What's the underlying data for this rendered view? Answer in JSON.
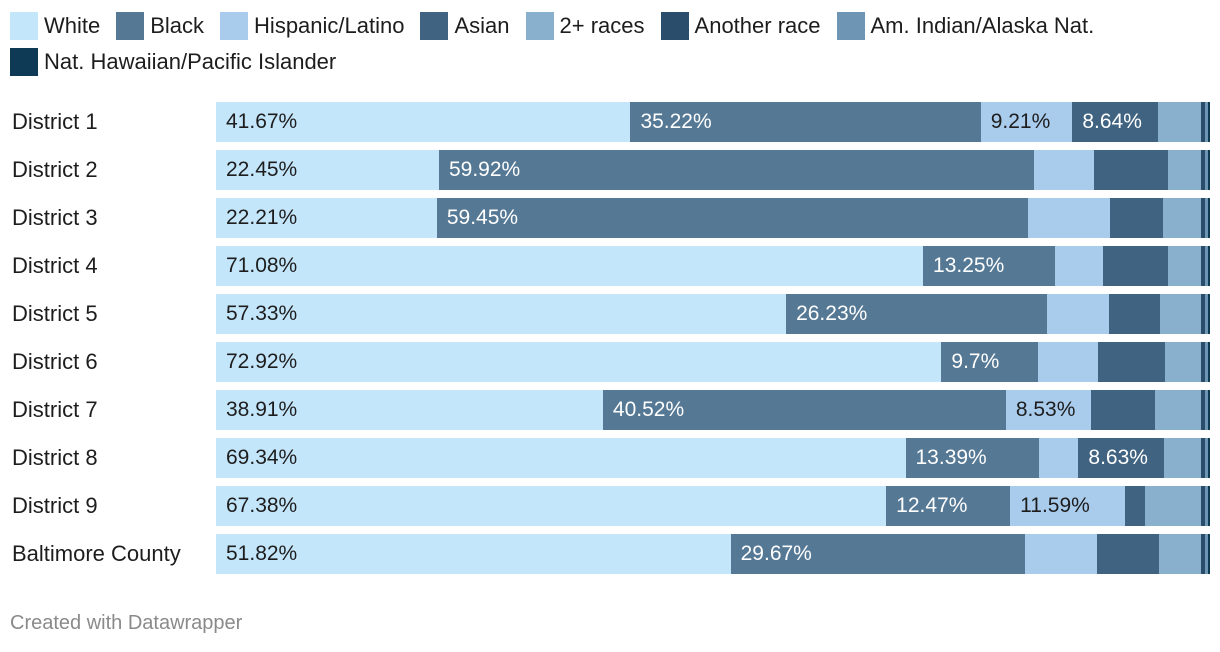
{
  "legend": {
    "items": [
      {
        "name": "White",
        "color": "#c4e6fb"
      },
      {
        "name": "Black",
        "color": "#557895"
      },
      {
        "name": "Hispanic/Latino",
        "color": "#a9cced"
      },
      {
        "name": "Asian",
        "color": "#3f6380"
      },
      {
        "name": "2+ races",
        "color": "#89b0cc"
      },
      {
        "name": "Another race",
        "color": "#294d6b"
      },
      {
        "name": "Am. Indian/Alaska Nat.",
        "color": "#6e95b3"
      },
      {
        "name": "Nat. Hawaiian/Pacific Islander",
        "color": "#0f3a55"
      }
    ]
  },
  "chart_data": {
    "type": "bar",
    "orientation": "horizontal",
    "stacked": true,
    "normalized_to": 100,
    "categories": [
      "District 1",
      "District 2",
      "District 3",
      "District 4",
      "District 5",
      "District 6",
      "District 7",
      "District 8",
      "District 9",
      "Baltimore County"
    ],
    "series": [
      {
        "name": "White",
        "color": "#c4e6fb",
        "values": [
          41.67,
          22.45,
          22.21,
          71.08,
          57.33,
          72.92,
          38.91,
          69.34,
          67.38,
          51.82
        ],
        "labels": [
          "41.67%",
          "22.45%",
          "22.21%",
          "71.08%",
          "57.33%",
          "72.92%",
          "38.91%",
          "69.34%",
          "67.38%",
          "51.82%"
        ]
      },
      {
        "name": "Black",
        "color": "#557895",
        "values": [
          35.22,
          59.92,
          59.45,
          13.25,
          26.23,
          9.7,
          40.52,
          13.39,
          12.47,
          29.67
        ],
        "labels": [
          "35.22%",
          "59.92%",
          "59.45%",
          "13.25%",
          "26.23%",
          "9.7%",
          "40.52%",
          "13.39%",
          "12.47%",
          "29.67%"
        ]
      },
      {
        "name": "Hispanic/Latino",
        "color": "#a9cced",
        "values": [
          9.21,
          6.0,
          8.2,
          4.8,
          6.2,
          6.0,
          8.53,
          4.0,
          11.59,
          7.2
        ],
        "labels": [
          "9.21%",
          "",
          "",
          "",
          "",
          "",
          "8.53%",
          "",
          "11.59%",
          ""
        ]
      },
      {
        "name": "Asian",
        "color": "#3f6380",
        "values": [
          8.64,
          7.5,
          5.4,
          6.6,
          5.2,
          6.8,
          6.5,
          8.63,
          2.0,
          6.3
        ],
        "labels": [
          "8.64%",
          "",
          "",
          "",
          "",
          "",
          "",
          "8.63%",
          "",
          ""
        ]
      },
      {
        "name": "2+ races",
        "color": "#89b0cc",
        "values": [
          4.3,
          3.3,
          3.8,
          3.3,
          4.1,
          3.6,
          4.6,
          3.7,
          5.6,
          4.2
        ],
        "labels": [
          "",
          "",
          "",
          "",
          "",
          "",
          "",
          "",
          "",
          ""
        ]
      },
      {
        "name": "Another race",
        "color": "#294d6b",
        "values": [
          0.4,
          0.4,
          0.4,
          0.4,
          0.4,
          0.4,
          0.4,
          0.4,
          0.4,
          0.4
        ],
        "labels": [
          "",
          "",
          "",
          "",
          "",
          "",
          "",
          "",
          "",
          ""
        ]
      },
      {
        "name": "Am. Indian/Alaska Nat.",
        "color": "#6e95b3",
        "values": [
          0.3,
          0.3,
          0.3,
          0.3,
          0.3,
          0.3,
          0.3,
          0.3,
          0.3,
          0.3
        ],
        "labels": [
          "",
          "",
          "",
          "",
          "",
          "",
          "",
          "",
          "",
          ""
        ]
      },
      {
        "name": "Nat. Hawaiian/Pacific Islander",
        "color": "#0f3a55",
        "values": [
          0.2,
          0.2,
          0.2,
          0.2,
          0.2,
          0.2,
          0.2,
          0.2,
          0.2,
          0.2
        ],
        "labels": [
          "",
          "",
          "",
          "",
          "",
          "",
          "",
          "",
          "",
          ""
        ]
      }
    ],
    "label_colors": {
      "light": "#1d1d1d",
      "dark": "#ffffff"
    },
    "grid": false,
    "legend_position": "top-left"
  },
  "footer": {
    "credit": "Created with Datawrapper"
  }
}
